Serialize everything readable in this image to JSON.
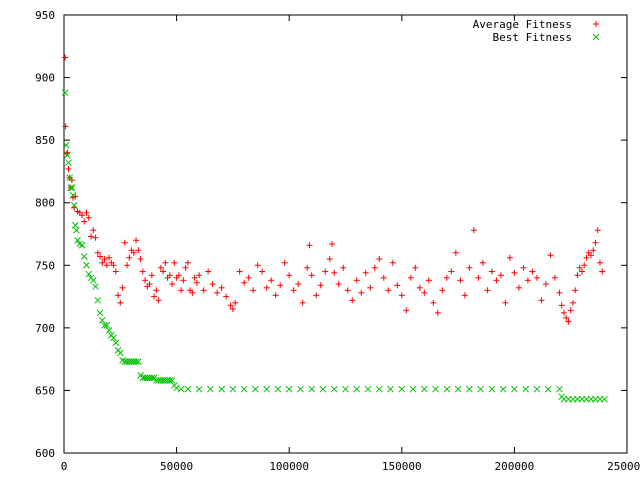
{
  "chart_data": {
    "type": "scatter",
    "title": "",
    "xlabel": "",
    "ylabel": "",
    "xlim": [
      0,
      250000
    ],
    "ylim": [
      600,
      950
    ],
    "xticks": [
      "0",
      "50000",
      "100000",
      "150000",
      "200000",
      "250000"
    ],
    "yticks": [
      "600",
      "650",
      "700",
      "750",
      "800",
      "850",
      "900",
      "950"
    ],
    "grid": false,
    "legend_position": "top-right",
    "series": [
      {
        "name": "Average Fitness",
        "marker": "plus",
        "color": "#ff0000",
        "points": [
          [
            500,
            916
          ],
          [
            700,
            861
          ],
          [
            1200,
            839
          ],
          [
            1500,
            840
          ],
          [
            2000,
            827
          ],
          [
            2500,
            820
          ],
          [
            3000,
            812
          ],
          [
            3500,
            818
          ],
          [
            4000,
            804
          ],
          [
            4500,
            796
          ],
          [
            5000,
            805
          ],
          [
            6000,
            793
          ],
          [
            7000,
            792
          ],
          [
            8000,
            790
          ],
          [
            9000,
            785
          ],
          [
            10000,
            792
          ],
          [
            11000,
            788
          ],
          [
            12000,
            773
          ],
          [
            13000,
            778
          ],
          [
            14000,
            772
          ],
          [
            15000,
            760
          ],
          [
            16000,
            757
          ],
          [
            17000,
            752
          ],
          [
            18000,
            755
          ],
          [
            19000,
            750
          ],
          [
            20000,
            756
          ],
          [
            21000,
            752
          ],
          [
            22000,
            750
          ],
          [
            23000,
            745
          ],
          [
            24000,
            726
          ],
          [
            25000,
            720
          ],
          [
            26000,
            732
          ],
          [
            27000,
            768
          ],
          [
            28000,
            750
          ],
          [
            29000,
            756
          ],
          [
            30000,
            762
          ],
          [
            31000,
            760
          ],
          [
            32000,
            770
          ],
          [
            33000,
            762
          ],
          [
            34000,
            755
          ],
          [
            35000,
            745
          ],
          [
            36000,
            738
          ],
          [
            37000,
            733
          ],
          [
            38000,
            735
          ],
          [
            39000,
            742
          ],
          [
            40000,
            725
          ],
          [
            41000,
            730
          ],
          [
            42000,
            722
          ],
          [
            43000,
            748
          ],
          [
            44000,
            745
          ],
          [
            45000,
            752
          ],
          [
            46000,
            740
          ],
          [
            47000,
            742
          ],
          [
            48000,
            735
          ],
          [
            49000,
            752
          ],
          [
            50000,
            740
          ],
          [
            51000,
            742
          ],
          [
            52000,
            730
          ],
          [
            53000,
            738
          ],
          [
            54000,
            748
          ],
          [
            55000,
            752
          ],
          [
            56000,
            730
          ],
          [
            57000,
            728
          ],
          [
            58000,
            740
          ],
          [
            59000,
            736
          ],
          [
            60000,
            742
          ],
          [
            62000,
            730
          ],
          [
            64000,
            745
          ],
          [
            66000,
            735
          ],
          [
            68000,
            728
          ],
          [
            70000,
            732
          ],
          [
            72000,
            725
          ],
          [
            74000,
            718
          ],
          [
            75000,
            715
          ],
          [
            76000,
            720
          ],
          [
            78000,
            745
          ],
          [
            80000,
            736
          ],
          [
            82000,
            740
          ],
          [
            84000,
            730
          ],
          [
            86000,
            750
          ],
          [
            88000,
            745
          ],
          [
            90000,
            732
          ],
          [
            92000,
            738
          ],
          [
            94000,
            726
          ],
          [
            96000,
            734
          ],
          [
            98000,
            752
          ],
          [
            100000,
            742
          ],
          [
            102000,
            730
          ],
          [
            104000,
            735
          ],
          [
            106000,
            720
          ],
          [
            108000,
            748
          ],
          [
            109000,
            766
          ],
          [
            110000,
            742
          ],
          [
            112000,
            726
          ],
          [
            114000,
            734
          ],
          [
            116000,
            745
          ],
          [
            118000,
            755
          ],
          [
            119000,
            767
          ],
          [
            120000,
            744
          ],
          [
            122000,
            735
          ],
          [
            124000,
            748
          ],
          [
            126000,
            730
          ],
          [
            128000,
            722
          ],
          [
            130000,
            738
          ],
          [
            132000,
            728
          ],
          [
            134000,
            744
          ],
          [
            136000,
            732
          ],
          [
            138000,
            748
          ],
          [
            140000,
            755
          ],
          [
            142000,
            740
          ],
          [
            144000,
            730
          ],
          [
            146000,
            752
          ],
          [
            148000,
            734
          ],
          [
            150000,
            726
          ],
          [
            152000,
            714
          ],
          [
            154000,
            740
          ],
          [
            156000,
            748
          ],
          [
            158000,
            732
          ],
          [
            160000,
            728
          ],
          [
            162000,
            738
          ],
          [
            164000,
            720
          ],
          [
            166000,
            712
          ],
          [
            168000,
            730
          ],
          [
            170000,
            740
          ],
          [
            172000,
            745
          ],
          [
            174000,
            760
          ],
          [
            176000,
            738
          ],
          [
            178000,
            726
          ],
          [
            180000,
            748
          ],
          [
            182000,
            778
          ],
          [
            184000,
            740
          ],
          [
            186000,
            752
          ],
          [
            188000,
            730
          ],
          [
            190000,
            745
          ],
          [
            192000,
            738
          ],
          [
            194000,
            742
          ],
          [
            196000,
            720
          ],
          [
            198000,
            756
          ],
          [
            200000,
            744
          ],
          [
            202000,
            732
          ],
          [
            204000,
            748
          ],
          [
            206000,
            738
          ],
          [
            208000,
            745
          ],
          [
            210000,
            740
          ],
          [
            212000,
            722
          ],
          [
            214000,
            735
          ],
          [
            216000,
            758
          ],
          [
            218000,
            740
          ],
          [
            220000,
            728
          ],
          [
            221000,
            718
          ],
          [
            222000,
            712
          ],
          [
            223000,
            708
          ],
          [
            224000,
            705
          ],
          [
            225000,
            714
          ],
          [
            226000,
            720
          ],
          [
            227000,
            730
          ],
          [
            228000,
            742
          ],
          [
            229000,
            748
          ],
          [
            230000,
            745
          ],
          [
            231000,
            750
          ],
          [
            232000,
            756
          ],
          [
            233000,
            760
          ],
          [
            234000,
            758
          ],
          [
            235000,
            762
          ],
          [
            236000,
            768
          ],
          [
            237000,
            778
          ],
          [
            238000,
            752
          ],
          [
            239000,
            745
          ]
        ]
      },
      {
        "name": "Best Fitness",
        "marker": "x",
        "color": "#00c000",
        "points": [
          [
            500,
            888
          ],
          [
            1000,
            846
          ],
          [
            1500,
            838
          ],
          [
            2000,
            832
          ],
          [
            2500,
            820
          ],
          [
            3000,
            812
          ],
          [
            3500,
            812
          ],
          [
            4000,
            806
          ],
          [
            4500,
            798
          ],
          [
            5000,
            782
          ],
          [
            5500,
            778
          ],
          [
            6000,
            770
          ],
          [
            7000,
            767
          ],
          [
            8000,
            766
          ],
          [
            9000,
            757
          ],
          [
            10000,
            750
          ],
          [
            11000,
            743
          ],
          [
            12000,
            740
          ],
          [
            13000,
            738
          ],
          [
            14000,
            733
          ],
          [
            15000,
            722
          ],
          [
            16000,
            712
          ],
          [
            17000,
            706
          ],
          [
            18000,
            702
          ],
          [
            19000,
            702
          ],
          [
            20000,
            698
          ],
          [
            21000,
            694
          ],
          [
            22000,
            692
          ],
          [
            23000,
            688
          ],
          [
            24000,
            682
          ],
          [
            25000,
            680
          ],
          [
            26000,
            674
          ],
          [
            27000,
            673
          ],
          [
            28000,
            673
          ],
          [
            29000,
            673
          ],
          [
            30000,
            673
          ],
          [
            31000,
            673
          ],
          [
            32000,
            673
          ],
          [
            33000,
            673
          ],
          [
            34000,
            662
          ],
          [
            35000,
            660
          ],
          [
            36000,
            660
          ],
          [
            37000,
            660
          ],
          [
            38000,
            660
          ],
          [
            39000,
            660
          ],
          [
            40000,
            660
          ],
          [
            41000,
            658
          ],
          [
            42000,
            658
          ],
          [
            43000,
            658
          ],
          [
            44000,
            658
          ],
          [
            45000,
            658
          ],
          [
            46000,
            658
          ],
          [
            47000,
            658
          ],
          [
            48000,
            658
          ],
          [
            49000,
            654
          ],
          [
            50000,
            652
          ],
          [
            52000,
            651
          ],
          [
            55000,
            651
          ],
          [
            60000,
            651
          ],
          [
            65000,
            651
          ],
          [
            70000,
            651
          ],
          [
            75000,
            651
          ],
          [
            80000,
            651
          ],
          [
            85000,
            651
          ],
          [
            90000,
            651
          ],
          [
            95000,
            651
          ],
          [
            100000,
            651
          ],
          [
            105000,
            651
          ],
          [
            110000,
            651
          ],
          [
            115000,
            651
          ],
          [
            120000,
            651
          ],
          [
            125000,
            651
          ],
          [
            130000,
            651
          ],
          [
            135000,
            651
          ],
          [
            140000,
            651
          ],
          [
            145000,
            651
          ],
          [
            150000,
            651
          ],
          [
            155000,
            651
          ],
          [
            160000,
            651
          ],
          [
            165000,
            651
          ],
          [
            170000,
            651
          ],
          [
            175000,
            651
          ],
          [
            180000,
            651
          ],
          [
            185000,
            651
          ],
          [
            190000,
            651
          ],
          [
            195000,
            651
          ],
          [
            200000,
            651
          ],
          [
            205000,
            651
          ],
          [
            210000,
            651
          ],
          [
            215000,
            651
          ],
          [
            220000,
            651
          ],
          [
            221000,
            645
          ],
          [
            222000,
            643
          ],
          [
            224000,
            643
          ],
          [
            226000,
            643
          ],
          [
            228000,
            643
          ],
          [
            230000,
            643
          ],
          [
            232000,
            643
          ],
          [
            234000,
            643
          ],
          [
            236000,
            643
          ],
          [
            238000,
            643
          ],
          [
            240000,
            643
          ]
        ]
      }
    ]
  }
}
